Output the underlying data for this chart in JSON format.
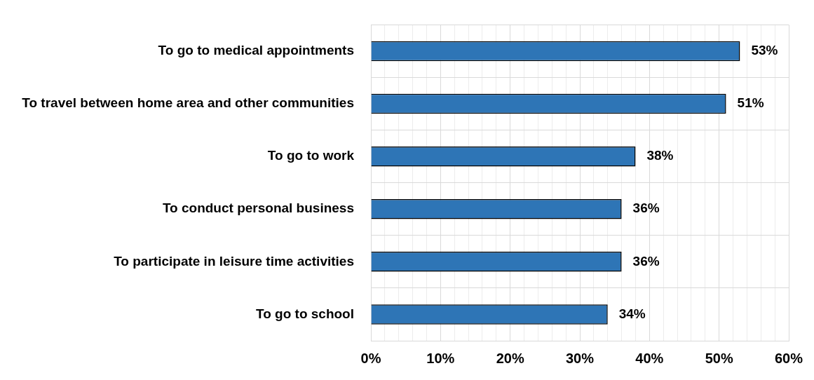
{
  "chart_data": {
    "type": "bar",
    "orientation": "horizontal",
    "categories": [
      "To go to medical appointments",
      "To travel between home area and other communities",
      "To go to work",
      "To conduct personal business",
      "To participate in leisure time activities",
      "To go to school"
    ],
    "values": [
      53,
      51,
      38,
      36,
      36,
      34
    ],
    "value_labels": [
      "53%",
      "51%",
      "38%",
      "36%",
      "36%",
      "34%"
    ],
    "color": "#2e75b6",
    "xlim": [
      0,
      60
    ],
    "xticks": [
      {
        "value": 0,
        "label": "0%"
      },
      {
        "value": 2,
        "label": null
      },
      {
        "value": 4,
        "label": null
      },
      {
        "value": 6,
        "label": null
      },
      {
        "value": 8,
        "label": null
      },
      {
        "value": 10,
        "label": "10%"
      },
      {
        "value": 12,
        "label": null
      },
      {
        "value": 14,
        "label": null
      },
      {
        "value": 16,
        "label": null
      },
      {
        "value": 18,
        "label": null
      },
      {
        "value": 20,
        "label": "20%"
      },
      {
        "value": 22,
        "label": null
      },
      {
        "value": 24,
        "label": null
      },
      {
        "value": 26,
        "label": null
      },
      {
        "value": 28,
        "label": null
      },
      {
        "value": 30,
        "label": "30%"
      },
      {
        "value": 32,
        "label": null
      },
      {
        "value": 34,
        "label": null
      },
      {
        "value": 36,
        "label": null
      },
      {
        "value": 38,
        "label": null
      },
      {
        "value": 40,
        "label": "40%"
      },
      {
        "value": 42,
        "label": null
      },
      {
        "value": 44,
        "label": null
      },
      {
        "value": 46,
        "label": null
      },
      {
        "value": 48,
        "label": null
      },
      {
        "value": 50,
        "label": "50%"
      },
      {
        "value": 52,
        "label": null
      },
      {
        "value": 54,
        "label": null
      },
      {
        "value": 56,
        "label": null
      },
      {
        "value": 58,
        "label": null
      },
      {
        "value": 60,
        "label": "60%"
      }
    ],
    "grid": true
  }
}
